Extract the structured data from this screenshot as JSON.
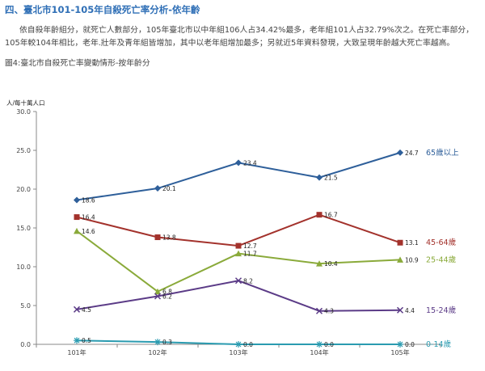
{
  "heading": "四、臺北市101-105年自殺死亡率分析-依年齡",
  "paragraph": "依自殺年齡組分，就死亡人數部分，105年臺北市以中年組106人占34.42%最多，老年組101人占32.79%次之。在死亡率部分，105年較104年相比，老年.壯年及青年組皆增加，其中以老年組增加最多；另就近5年資料發現，大致呈現年齡越大死亡率越高。",
  "caption": "圖4:臺北市自殺死亡率變動情形-按年齡分",
  "chart_data": {
    "type": "line",
    "title": "",
    "ylabel": "人/每十萬人口",
    "xlabel": "",
    "categories": [
      "101年",
      "102年",
      "103年",
      "104年",
      "105年"
    ],
    "ylim": [
      0,
      30
    ],
    "yticks": [
      "0.0",
      "5.0",
      "10.0",
      "15.0",
      "20.0",
      "25.0",
      "30.0"
    ],
    "grid": false,
    "legend": "right, next to last point",
    "series": [
      {
        "name": "65歲以上",
        "values": [
          18.6,
          20.1,
          23.4,
          21.5,
          24.7
        ],
        "labels": [
          "18.6",
          "20.1",
          "23.4",
          "21.5",
          "24.7"
        ],
        "color": "#2e5f9a",
        "marker": "diamond"
      },
      {
        "name": "45-64歲",
        "values": [
          16.4,
          13.8,
          12.7,
          16.7,
          13.1
        ],
        "labels": [
          "16.4",
          "13.8",
          "12.7",
          "16.7",
          "13.1"
        ],
        "color": "#a3322c",
        "marker": "square"
      },
      {
        "name": "25-44歲",
        "values": [
          14.6,
          6.8,
          11.7,
          10.4,
          10.9
        ],
        "labels": [
          "14.6",
          "6.8",
          "11.7",
          "10.4",
          "10.9"
        ],
        "color": "#8aaa3a",
        "marker": "triangle"
      },
      {
        "name": "15-24歲",
        "values": [
          4.5,
          6.2,
          8.2,
          4.3,
          4.4
        ],
        "labels": [
          "4.5",
          "6.2",
          "8.2",
          "4.3",
          "4.4"
        ],
        "color": "#5b3b87",
        "marker": "x"
      },
      {
        "name": "0-14歲",
        "values": [
          0.5,
          0.3,
          0.0,
          0.0,
          0.0
        ],
        "labels": [
          "0.5",
          "0.3",
          "0.0",
          "0.0",
          "0.0"
        ],
        "color": "#2a9bb0",
        "marker": "star"
      }
    ]
  }
}
